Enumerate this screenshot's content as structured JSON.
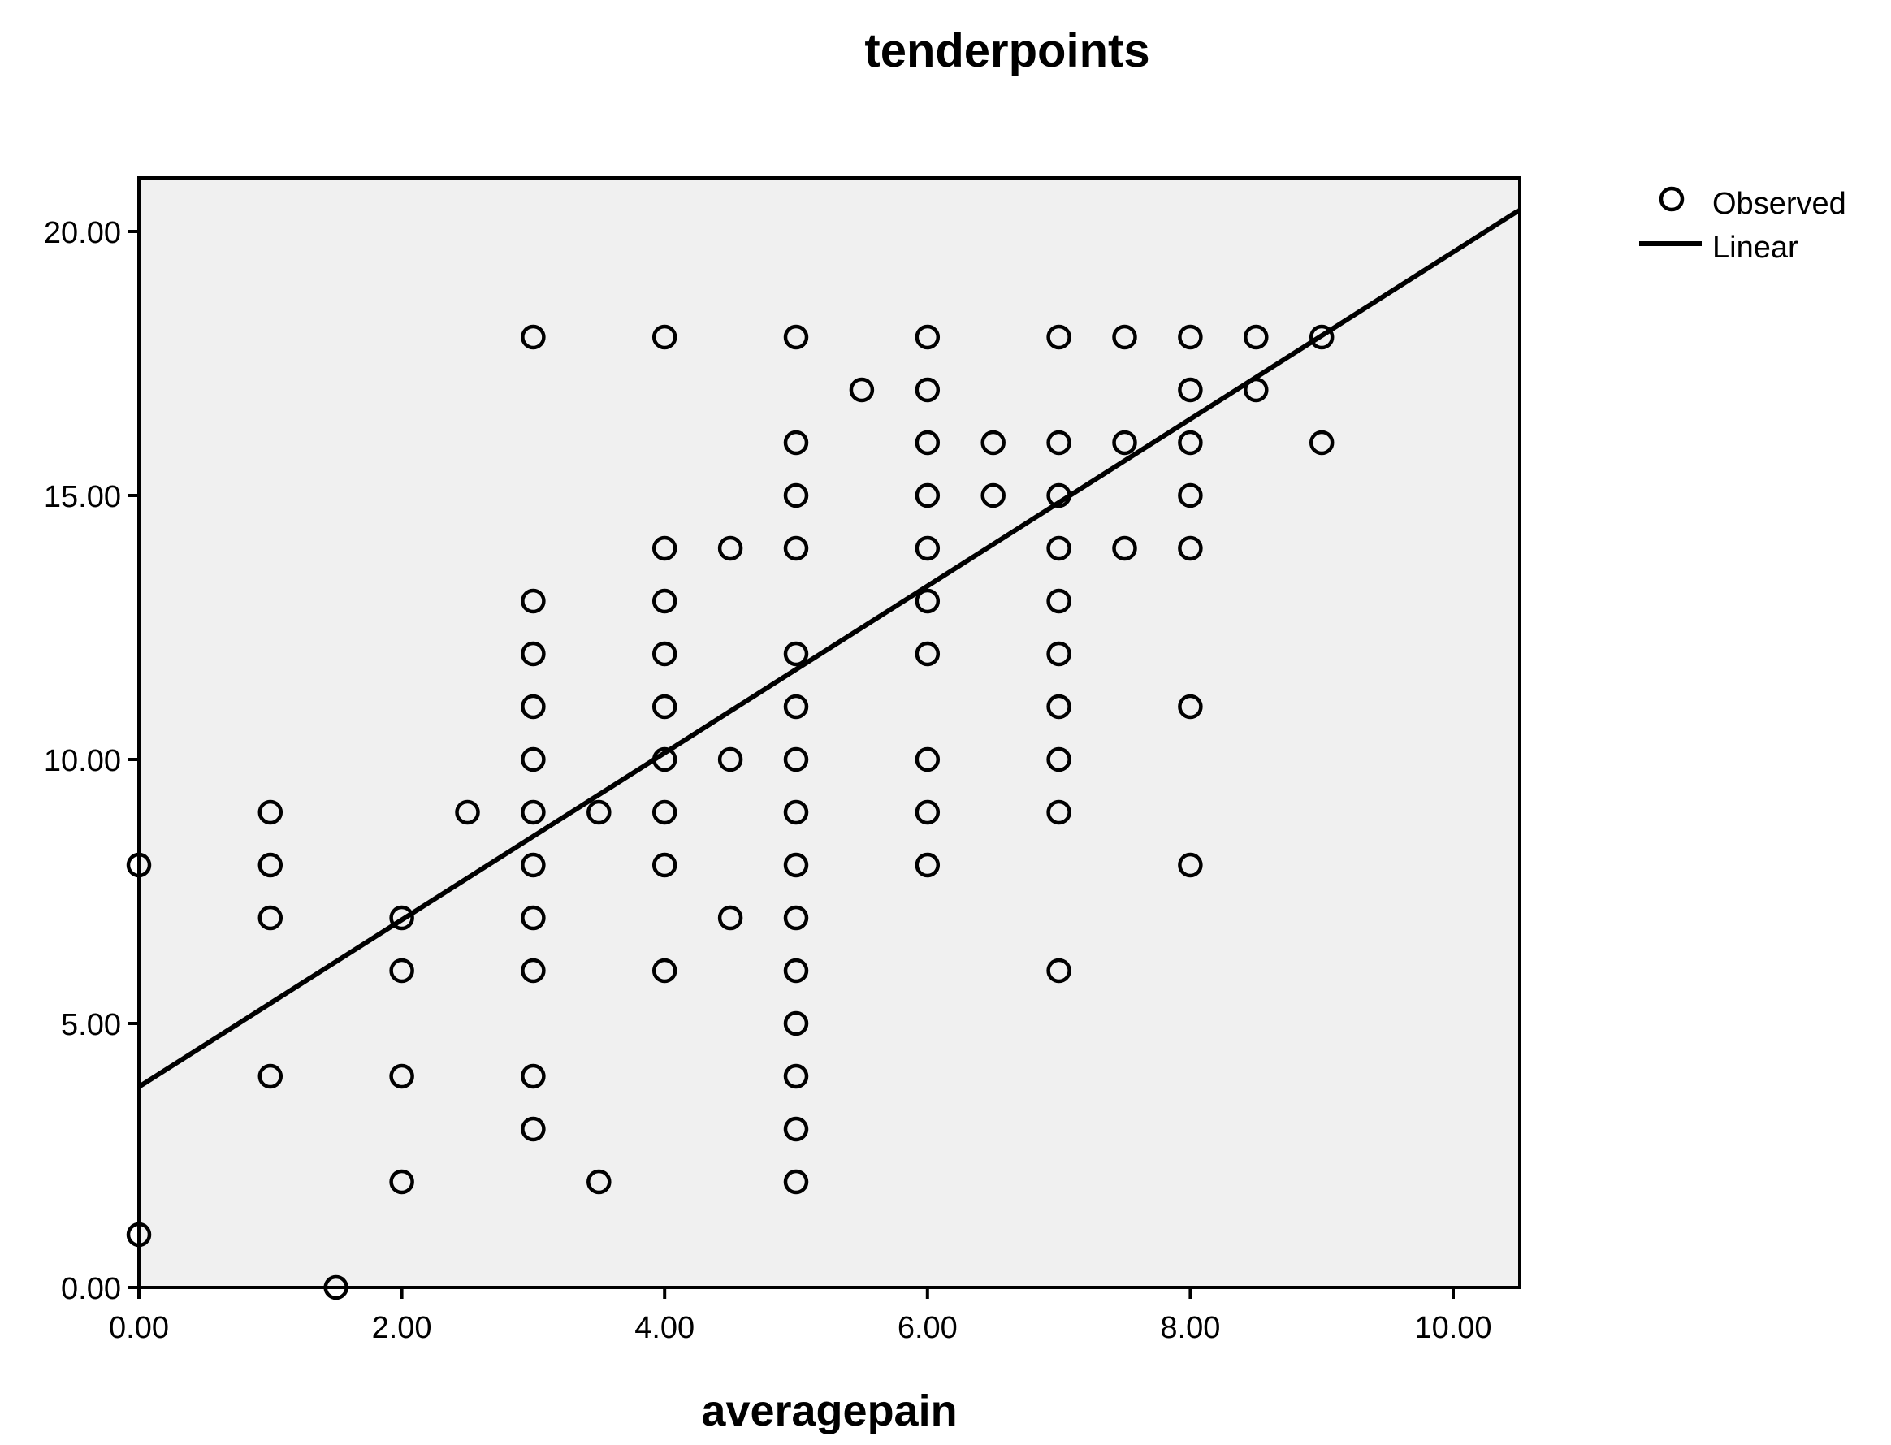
{
  "chart_data": {
    "type": "scatter",
    "title": "tenderpoints",
    "xlabel": "averagepain",
    "ylabel": "",
    "xlim": [
      0,
      10.5
    ],
    "ylim": [
      0,
      21
    ],
    "x_ticks": [
      "0.00",
      "2.00",
      "4.00",
      "6.00",
      "8.00",
      "10.00"
    ],
    "y_ticks": [
      "0.00",
      "5.00",
      "10.00",
      "15.00",
      "20.00"
    ],
    "plot_background": "#f0f0f0",
    "legend": {
      "position": "top-right",
      "entries": [
        "Observed",
        "Linear"
      ]
    },
    "series": [
      {
        "name": "Observed",
        "kind": "points",
        "points": [
          [
            0,
            8
          ],
          [
            0,
            1
          ],
          [
            1,
            9
          ],
          [
            1,
            8
          ],
          [
            1,
            7
          ],
          [
            1,
            4
          ],
          [
            1.5,
            0
          ],
          [
            2,
            7
          ],
          [
            2,
            6
          ],
          [
            2,
            4
          ],
          [
            2,
            2
          ],
          [
            2.5,
            9
          ],
          [
            3,
            18
          ],
          [
            3,
            13
          ],
          [
            3,
            12
          ],
          [
            3,
            11
          ],
          [
            3,
            10
          ],
          [
            3,
            9
          ],
          [
            3,
            8
          ],
          [
            3,
            7
          ],
          [
            3,
            6
          ],
          [
            3,
            4
          ],
          [
            3,
            3
          ],
          [
            3.5,
            9
          ],
          [
            3.5,
            2
          ],
          [
            4,
            18
          ],
          [
            4,
            14
          ],
          [
            4,
            13
          ],
          [
            4,
            12
          ],
          [
            4,
            11
          ],
          [
            4,
            10
          ],
          [
            4,
            9
          ],
          [
            4,
            8
          ],
          [
            4,
            6
          ],
          [
            4.5,
            14
          ],
          [
            4.5,
            10
          ],
          [
            4.5,
            7
          ],
          [
            5,
            18
          ],
          [
            5,
            16
          ],
          [
            5,
            15
          ],
          [
            5,
            14
          ],
          [
            5,
            12
          ],
          [
            5,
            11
          ],
          [
            5,
            10
          ],
          [
            5,
            9
          ],
          [
            5,
            8
          ],
          [
            5,
            7
          ],
          [
            5,
            6
          ],
          [
            5,
            5
          ],
          [
            5,
            4
          ],
          [
            5,
            3
          ],
          [
            5,
            2
          ],
          [
            5.5,
            17
          ],
          [
            6,
            18
          ],
          [
            6,
            17
          ],
          [
            6,
            16
          ],
          [
            6,
            15
          ],
          [
            6,
            14
          ],
          [
            6,
            13
          ],
          [
            6,
            12
          ],
          [
            6,
            10
          ],
          [
            6,
            9
          ],
          [
            6,
            8
          ],
          [
            6.5,
            16
          ],
          [
            6.5,
            15
          ],
          [
            7,
            18
          ],
          [
            7,
            16
          ],
          [
            7,
            15
          ],
          [
            7,
            14
          ],
          [
            7,
            13
          ],
          [
            7,
            12
          ],
          [
            7,
            11
          ],
          [
            7,
            10
          ],
          [
            7,
            9
          ],
          [
            7,
            6
          ],
          [
            7.5,
            18
          ],
          [
            7.5,
            16
          ],
          [
            7.5,
            14
          ],
          [
            8,
            18
          ],
          [
            8,
            17
          ],
          [
            8,
            16
          ],
          [
            8,
            15
          ],
          [
            8,
            14
          ],
          [
            8,
            11
          ],
          [
            8,
            8
          ],
          [
            8.5,
            18
          ],
          [
            8.5,
            17
          ],
          [
            9,
            18
          ],
          [
            9,
            16
          ]
        ]
      },
      {
        "name": "Linear",
        "kind": "line",
        "x": [
          0,
          10.5
        ],
        "y": [
          3.8,
          20.4
        ]
      }
    ]
  }
}
